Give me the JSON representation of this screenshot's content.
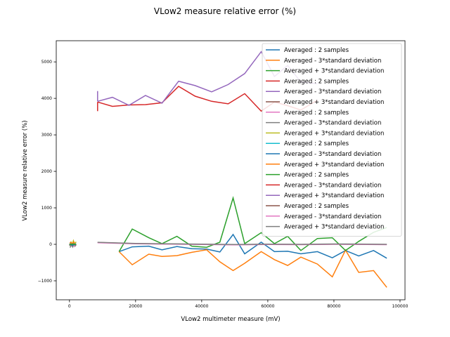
{
  "chart_data": {
    "type": "line",
    "title": "VLow2 measure relative error (%)",
    "xlabel": "VLow2 multimeter measure (mV)",
    "ylabel": "VLow2 measure relative error (%)",
    "xlim": [
      -4000,
      101500
    ],
    "ylim": [
      -1520,
      5580
    ],
    "xticks": [
      0,
      20000,
      40000,
      60000,
      80000,
      100000
    ],
    "yticks": [
      -1000,
      0,
      1000,
      2000,
      3000,
      4000,
      5000
    ],
    "grid": false,
    "legend_position": "top-right",
    "series": [
      {
        "name": "Averaged : 2 samples",
        "color": "#1f77b4",
        "x": [
          15000,
          19000,
          24000,
          28000,
          32500,
          37000,
          41500,
          45500,
          49500,
          53000,
          58000,
          62000,
          66000,
          70000,
          75000,
          79500,
          83500,
          87500,
          92000,
          96000
        ],
        "y": [
          -200,
          -70,
          -50,
          -150,
          -60,
          -120,
          -130,
          -210,
          270,
          -260,
          60,
          -200,
          -190,
          -260,
          -200,
          -370,
          -170,
          -320,
          -170,
          -380
        ]
      },
      {
        "name": "Averaged - 3*standard deviation",
        "color": "#ff7f0e",
        "x": [
          15000,
          19000,
          24000,
          28000,
          32500,
          37000,
          41500,
          45500,
          49500,
          53000,
          58000,
          62000,
          66000,
          70000,
          75000,
          79500,
          83500,
          87500,
          92000,
          96000
        ],
        "y": [
          -200,
          -560,
          -270,
          -330,
          -310,
          -220,
          -150,
          -480,
          -720,
          -520,
          -200,
          -420,
          -580,
          -350,
          -540,
          -890,
          -160,
          -770,
          -720,
          -1180
        ]
      },
      {
        "name": "Averaged + 3*standard deviation",
        "color": "#2ca02c",
        "x": [
          15000,
          19000,
          24000,
          28000,
          32500,
          37000,
          41500,
          45500,
          49500,
          53000,
          58000,
          62000,
          66000,
          70000,
          75000,
          79500,
          83500,
          87500,
          92000,
          96000
        ],
        "y": [
          -200,
          420,
          180,
          20,
          220,
          -50,
          -80,
          60,
          1270,
          20,
          320,
          20,
          220,
          -170,
          160,
          180,
          -170,
          80,
          330,
          460
        ]
      },
      {
        "name": "Averaged : 2 samples",
        "color": "#d62728",
        "x": [
          8500,
          13000,
          18000,
          23000,
          28000,
          33000,
          38000,
          43000,
          48000,
          53000,
          58000,
          62000,
          66000,
          70000,
          75000
        ],
        "y": [
          3900,
          3780,
          3820,
          3830,
          3880,
          4330,
          4060,
          3920,
          3850,
          4130,
          3650,
          3900,
          3800,
          3680,
          3950
        ]
      },
      {
        "name": "Averaged - 3*standard deviation",
        "color": "#9467bd",
        "x": [
          8500,
          13000,
          18000,
          23000,
          28000,
          33000,
          38000,
          43000,
          48000,
          53000,
          58000,
          62000,
          66000,
          70000,
          75000
        ],
        "y": [
          3920,
          4030,
          3810,
          4080,
          3870,
          4470,
          4350,
          4180,
          4380,
          4680,
          5280,
          4600,
          4900,
          4450,
          4400
        ]
      },
      {
        "name": "Averaged + 3*standard deviation",
        "color": "#8c564b",
        "x": [
          0,
          200,
          400,
          600,
          800,
          1000,
          1200,
          1400,
          1600,
          1800,
          2000
        ],
        "y": [
          -30,
          20,
          -60,
          10,
          -40,
          30,
          -20,
          40,
          -10,
          20,
          -30
        ]
      },
      {
        "name": "Averaged : 2 samples",
        "color": "#e377c2",
        "x": [
          300,
          700,
          1100,
          1500,
          1900
        ],
        "y": [
          40,
          -20,
          60,
          -50,
          30
        ]
      },
      {
        "name": "Averaged - 3*standard deviation",
        "color": "#7f7f7f",
        "x": [
          200,
          600,
          1000,
          1400,
          1800
        ],
        "y": [
          -90,
          20,
          -70,
          30,
          -60
        ]
      },
      {
        "name": "Averaged + 3*standard deviation",
        "color": "#bcbd22",
        "x": [
          400,
          800,
          1200,
          1600,
          2000
        ],
        "y": [
          80,
          -10,
          100,
          0,
          70
        ]
      },
      {
        "name": "Averaged : 2 samples",
        "color": "#17becf",
        "x": [
          0,
          500,
          1000,
          1500,
          2000
        ],
        "y": [
          0,
          10,
          -10,
          15,
          0
        ]
      },
      {
        "name": "Averaged - 3*standard deviation",
        "color": "#1f77b4",
        "x": [
          100,
          500,
          900,
          1300,
          1700
        ],
        "y": [
          -20,
          0,
          -30,
          5,
          -15
        ]
      },
      {
        "name": "Averaged + 3*standard deviation",
        "color": "#ff7f0e",
        "x": [
          100,
          500,
          900,
          1300,
          1700
        ],
        "y": [
          30,
          50,
          20,
          60,
          25
        ]
      },
      {
        "name": "Averaged : 2 samples",
        "color": "#2ca02c",
        "x": [
          0,
          1000,
          2000
        ],
        "y": [
          -10,
          10,
          -5
        ]
      },
      {
        "name": "Averaged - 3*standard deviation",
        "color": "#d62728",
        "x": [
          8500,
          8500
        ],
        "y": [
          3650,
          3900
        ]
      },
      {
        "name": "Averaged + 3*standard deviation",
        "color": "#9467bd",
        "x": [
          8500,
          8500
        ],
        "y": [
          3920,
          4200
        ]
      },
      {
        "name": "Averaged : 2 samples",
        "color": "#8c564b",
        "x": [
          8500,
          20000,
          30000,
          40000,
          50000,
          60000,
          70000,
          80000,
          90000,
          96000
        ],
        "y": [
          50,
          20,
          10,
          0,
          -10,
          0,
          -5,
          5,
          0,
          -5
        ]
      },
      {
        "name": "Averaged - 3*standard deviation",
        "color": "#e377c2",
        "x": [
          8500,
          20000,
          30000,
          40000,
          50000,
          60000,
          70000,
          80000,
          90000,
          96000
        ],
        "y": [
          45,
          15,
          5,
          -5,
          -15,
          -5,
          -10,
          0,
          -5,
          -10
        ]
      },
      {
        "name": "Averaged + 3*standard deviation",
        "color": "#7f7f7f",
        "x": [
          8500,
          20000,
          30000,
          40000,
          50000,
          60000,
          70000,
          80000,
          90000,
          96000
        ],
        "y": [
          55,
          25,
          15,
          5,
          -5,
          5,
          0,
          10,
          5,
          0
        ]
      }
    ]
  }
}
